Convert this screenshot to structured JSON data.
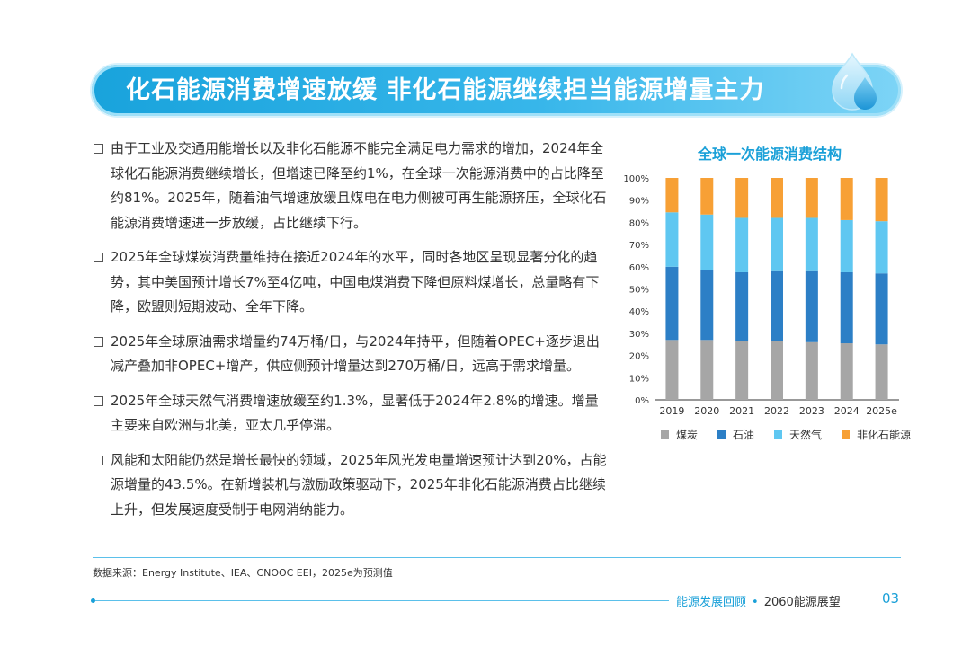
{
  "header": {
    "title": "化石能源消费增速放缓  非化石能源继续担当能源增量主力"
  },
  "bullets": [
    "由于工业及交通用能增长以及非化石能源不能完全满足电力需求的增加，2024年全球化石能源消费继续增长，但增速已降至约1%，在全球一次能源消费中的占比降至约81%。2025年，随着油气增速放缓且煤电在电力侧被可再生能源挤压，全球化石能源消费增速进一步放缓，占比继续下行。",
    "2025年全球煤炭消费量维持在接近2024年的水平，同时各地区呈现显著分化的趋势，其中美国预计增长7%至4亿吨，中国电煤消费下降但原料煤增长，总量略有下降，欧盟则短期波动、全年下降。",
    "2025年全球原油需求增量约74万桶/日，与2024年持平，但随着OPEC+逐步退出减产叠加非OPEC+增产，供应侧预计增量达到270万桶/日，远高于需求增量。",
    "2025年全球天然气消费增速放缓至约1.3%，显著低于2024年2.8%的增速。增量主要来自欧洲与北美，亚太几乎停滞。",
    "风能和太阳能仍然是增长最快的领域，2025年风光发电量增速预计达到20%，占能源增量的43.5%。在新增装机与激励政策驱动下，2025年非化石能源消费占比继续上升，但发展速度受制于电网消纳能力。"
  ],
  "chart_data": {
    "type": "bar",
    "stacked": true,
    "title": "全球一次能源消费结构",
    "categories": [
      "2019",
      "2020",
      "2021",
      "2022",
      "2023",
      "2024",
      "2025e"
    ],
    "ylim": [
      0,
      100
    ],
    "yticks": [
      "0%",
      "10%",
      "20%",
      "30%",
      "40%",
      "50%",
      "60%",
      "70%",
      "80%",
      "90%",
      "100%"
    ],
    "legend_position": "bottom",
    "grid": false,
    "series": [
      {
        "name": "煤炭",
        "color": "#a6a6a6",
        "values": [
          27,
          27,
          26.5,
          26.5,
          26,
          25.5,
          25
        ]
      },
      {
        "name": "石油",
        "color": "#2c7fc6",
        "values": [
          33,
          31.5,
          31,
          31.5,
          32,
          32,
          32
        ]
      },
      {
        "name": "天然气",
        "color": "#5fc7f1",
        "values": [
          24.5,
          25,
          24.5,
          24,
          24,
          23.5,
          23.5
        ]
      },
      {
        "name": "非化石能源",
        "color": "#f7a035",
        "values": [
          15.5,
          16.5,
          18,
          18,
          18,
          19,
          19.5
        ]
      }
    ]
  },
  "footer": {
    "source": "数据来源：Energy Institute、IEA、CNOOC EEI，2025e为预测值",
    "section": "能源发展回顾",
    "separator": "•",
    "book": "2060能源展望",
    "page": "03"
  }
}
